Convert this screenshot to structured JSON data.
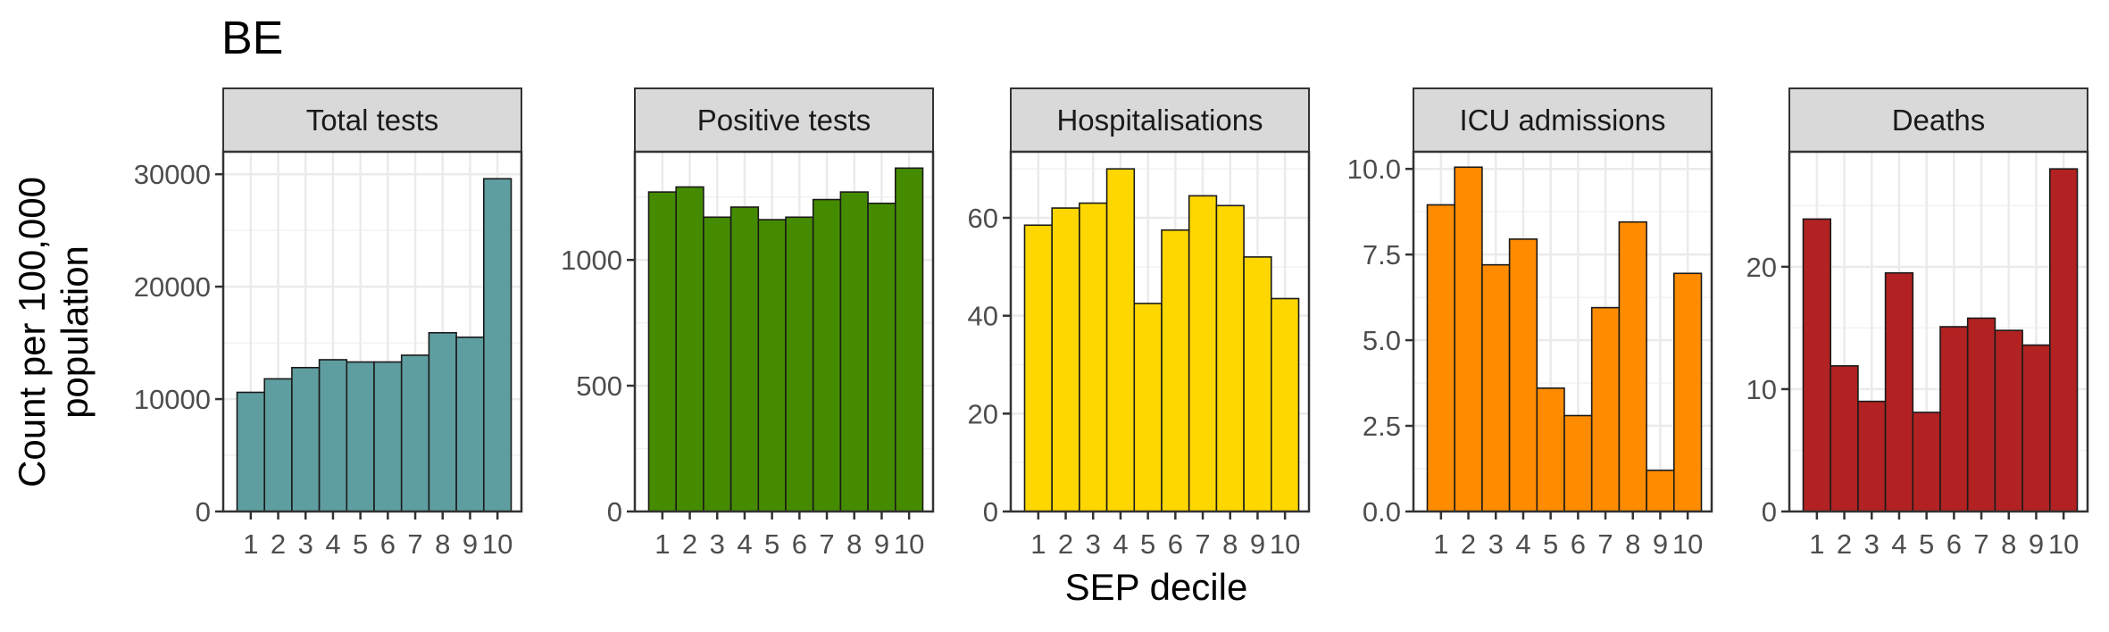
{
  "chart_data": {
    "type": "bar",
    "title": "BE",
    "xlabel": "SEP decile",
    "ylabel_lines": [
      "Count per 100,000",
      "population"
    ],
    "categories": [
      "1",
      "2",
      "3",
      "4",
      "5",
      "6",
      "7",
      "8",
      "9",
      "10"
    ],
    "panels": [
      {
        "name": "Total tests",
        "color": "#5F9EA0",
        "ylim": [
          0,
          32000
        ],
        "yticks": [
          0,
          10000,
          20000,
          30000
        ],
        "ytick_labels": [
          "0",
          "10000",
          "20000",
          "30000"
        ],
        "values": [
          10600,
          11800,
          12800,
          13500,
          13300,
          13300,
          13900,
          15900,
          15500,
          29600
        ]
      },
      {
        "name": "Positive tests",
        "color": "#458B00",
        "ylim": [
          0,
          1430
        ],
        "yticks": [
          0,
          500,
          1000
        ],
        "ytick_labels": [
          "0",
          "500",
          "1000"
        ],
        "values": [
          1270,
          1290,
          1170,
          1210,
          1160,
          1170,
          1240,
          1270,
          1225,
          1365
        ]
      },
      {
        "name": "Hospitalisations",
        "color": "#FFD700",
        "ylim": [
          0,
          73.5
        ],
        "yticks": [
          0,
          20,
          40,
          60
        ],
        "ytick_labels": [
          "0",
          "20",
          "40",
          "60"
        ],
        "values": [
          58.5,
          62,
          63,
          70,
          42.5,
          57.5,
          64.5,
          62.5,
          52,
          43.5
        ]
      },
      {
        "name": "ICU admissions",
        "color": "#FF8C00",
        "ylim": [
          0,
          10.5
        ],
        "yticks": [
          0,
          2.5,
          5,
          7.5,
          10
        ],
        "ytick_labels": [
          "0.0",
          "2.5",
          "5.0",
          "7.5",
          "10.0"
        ],
        "values": [
          8.95,
          10.05,
          7.2,
          7.95,
          3.6,
          2.8,
          5.95,
          8.45,
          1.2,
          6.95
        ]
      },
      {
        "name": "Deaths",
        "color": "#B22222",
        "ylim": [
          0,
          29.4
        ],
        "yticks": [
          0,
          10,
          20
        ],
        "ytick_labels": [
          "0",
          "10",
          "20"
        ],
        "values": [
          23.9,
          11.9,
          9.0,
          19.5,
          8.1,
          15.1,
          15.8,
          14.8,
          13.6,
          28
        ]
      }
    ],
    "grid": true,
    "legend": "none"
  }
}
